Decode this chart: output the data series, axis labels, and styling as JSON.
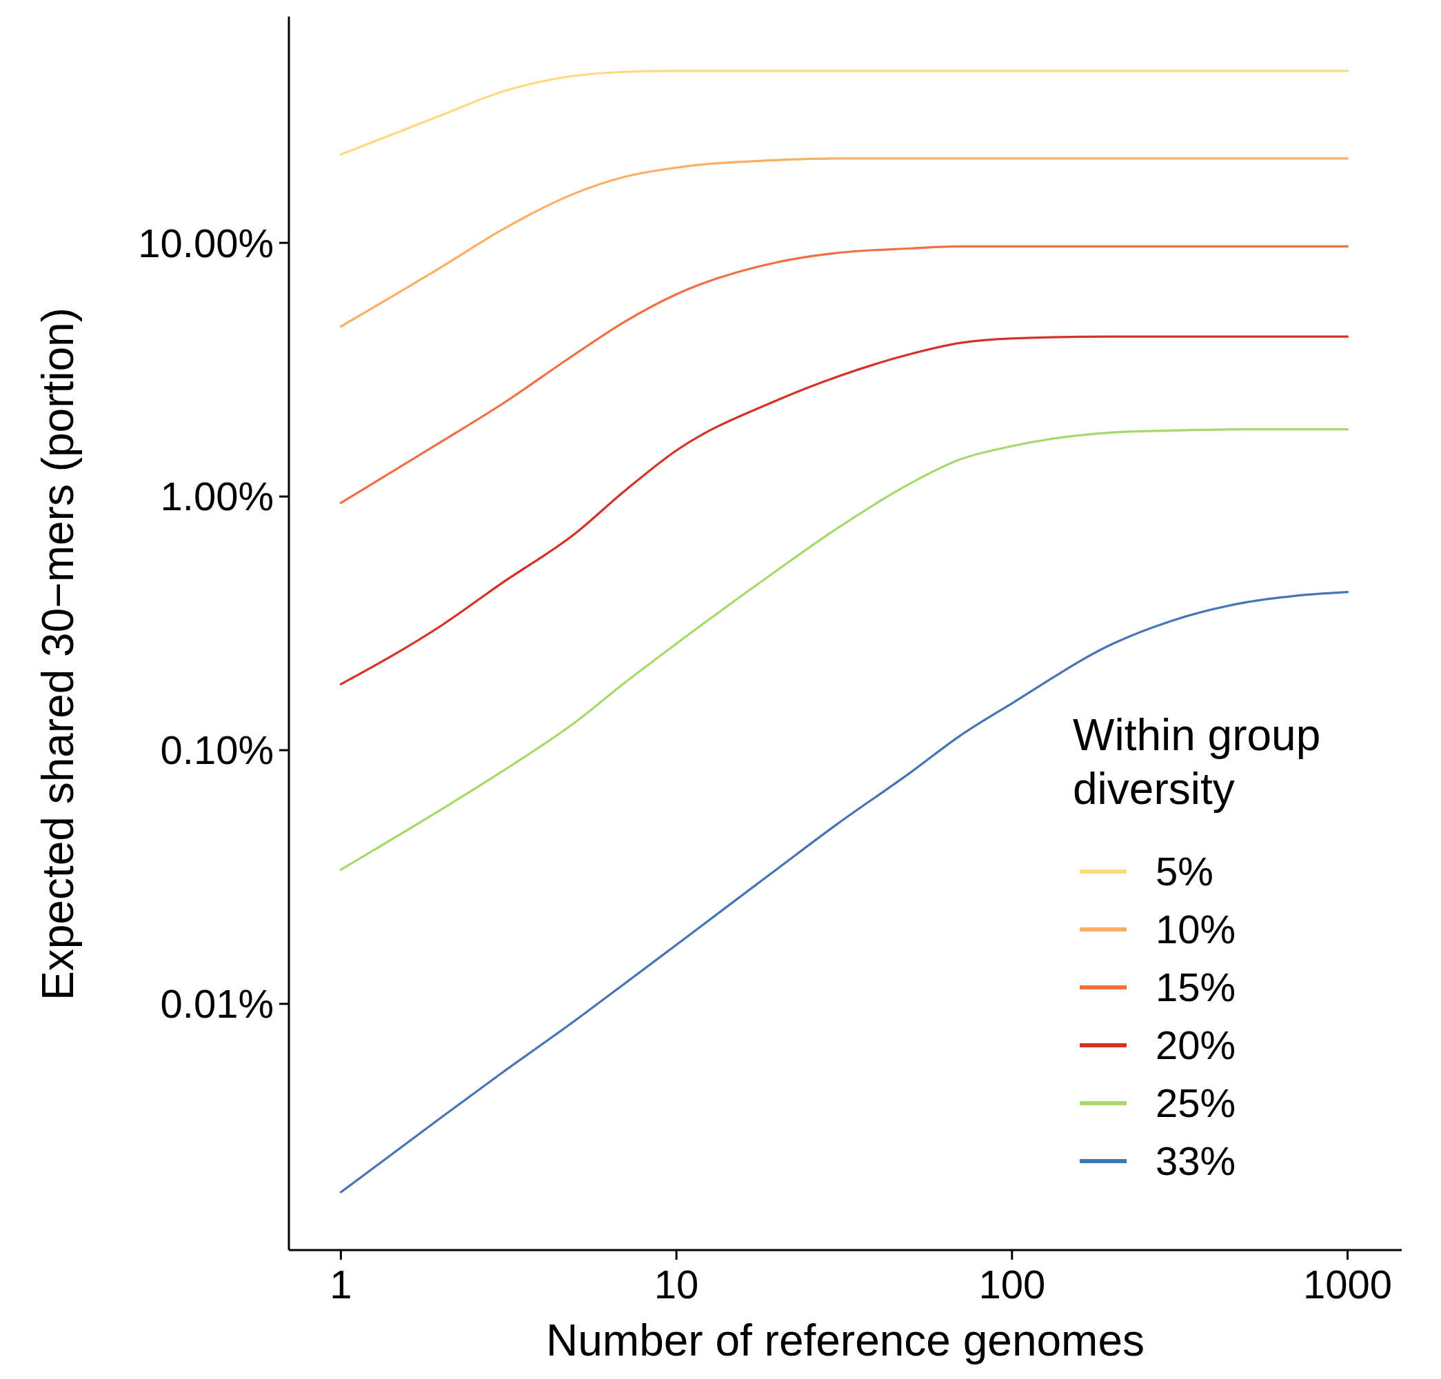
{
  "chart_data": {
    "type": "line",
    "xlabel": "Number of reference genomes",
    "ylabel": "Expected shared 30−mers (portion)",
    "legend_title": "Within group diversity",
    "log": "xy",
    "grid": false,
    "legend": "bottom right",
    "marker": "none",
    "line_style": "solid",
    "x": [
      1,
      2,
      3,
      5,
      7,
      10,
      20,
      30,
      50,
      70,
      100,
      200,
      300,
      500,
      700,
      1000
    ],
    "xlim": [
      0.7,
      1450
    ],
    "xticks": [
      1,
      10,
      100,
      1000
    ],
    "ylim": [
      0.00107,
      78
    ],
    "yticks": [
      {
        "value": 0.01,
        "label": "0.01%"
      },
      {
        "value": 0.1,
        "label": "0.10%"
      },
      {
        "value": 1,
        "label": "1.00%"
      },
      {
        "value": 10,
        "label": "10.00%"
      }
    ],
    "series": [
      {
        "name": "5%",
        "color": "#fed980",
        "values": [
          22.3,
          31.9,
          39.3,
          45.6,
          47.2,
          47.6,
          47.6,
          47.6,
          47.6,
          47.6,
          47.6,
          47.6,
          47.6,
          47.6,
          47.6,
          47.6
        ]
      },
      {
        "name": "10%",
        "color": "#fdae61",
        "values": [
          4.68,
          8.05,
          11.2,
          15.7,
          18.2,
          19.8,
          21.2,
          21.5,
          21.5,
          21.5,
          21.5,
          21.5,
          21.5,
          21.5,
          21.5,
          21.5
        ]
      },
      {
        "name": "15%",
        "color": "#f46d43",
        "values": [
          0.944,
          1.65,
          2.3,
          3.65,
          4.88,
          6.27,
          8.39,
          9.12,
          9.51,
          9.68,
          9.68,
          9.68,
          9.68,
          9.68,
          9.68,
          9.68
        ]
      },
      {
        "name": "20%",
        "color": "#d73027",
        "values": [
          0.182,
          0.311,
          0.453,
          0.716,
          1.05,
          1.52,
          2.4,
          2.96,
          3.65,
          4.03,
          4.2,
          4.27,
          4.27,
          4.27,
          4.27,
          4.27
        ]
      },
      {
        "name": "25%",
        "color": "#a6d96a",
        "values": [
          0.0338,
          0.0586,
          0.0819,
          0.129,
          0.184,
          0.263,
          0.513,
          0.746,
          1.13,
          1.4,
          1.58,
          1.79,
          1.82,
          1.84,
          1.84,
          1.84
        ]
      },
      {
        "name": "33%",
        "color": "#4575b4",
        "values": [
          0.00181,
          0.00358,
          0.00531,
          0.00861,
          0.012,
          0.0171,
          0.0341,
          0.0509,
          0.0819,
          0.114,
          0.153,
          0.263,
          0.324,
          0.383,
          0.406,
          0.42
        ]
      }
    ]
  }
}
